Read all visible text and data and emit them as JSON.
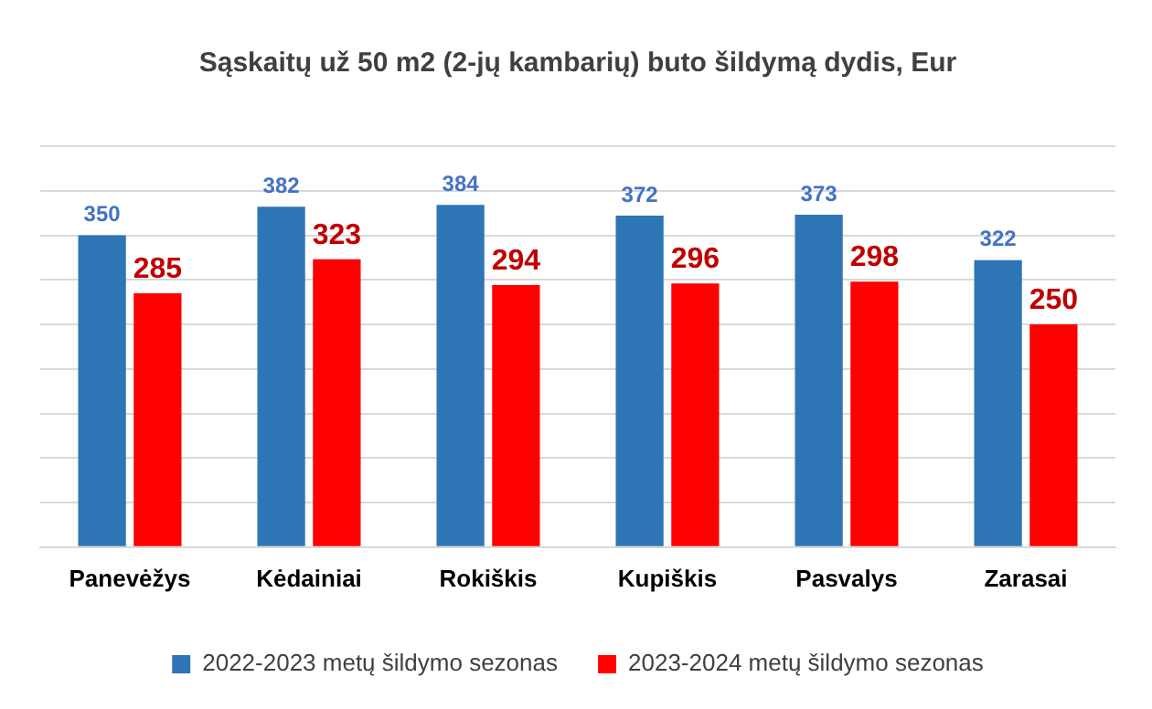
{
  "chart_data": {
    "type": "bar",
    "title": "Sąskaitų už 50 m2 (2-jų kambarių) buto šildymą dydis, Eur",
    "categories": [
      "Panevėžys",
      "Kėdainiai",
      "Rokiškis",
      "Kupiškis",
      "Pasvalys",
      "Zarasai"
    ],
    "series": [
      {
        "name": "2022-2023 metų šildymo sezonas",
        "color": "#2e75b6",
        "values": [
          350,
          382,
          384,
          372,
          373,
          322
        ]
      },
      {
        "name": "2023-2024 metų šildymo sezonas",
        "color": "#ff0000",
        "values": [
          285,
          323,
          294,
          296,
          298,
          250
        ]
      }
    ],
    "ylim": [
      0,
      450
    ],
    "yticks": [
      {
        "value": 0,
        "label": null
      },
      {
        "value": 50,
        "label": null
      },
      {
        "value": 100,
        "label": null
      },
      {
        "value": 150,
        "label": null
      },
      {
        "value": 200,
        "label": null
      },
      {
        "value": 250,
        "label": null
      },
      {
        "value": 300,
        "label": null
      },
      {
        "value": 350,
        "label": null
      },
      {
        "value": 400,
        "label": null
      },
      {
        "value": 450,
        "label": null
      }
    ],
    "tick_labels": "x",
    "grid": "y",
    "legend": "bottom",
    "data_labels": true
  }
}
